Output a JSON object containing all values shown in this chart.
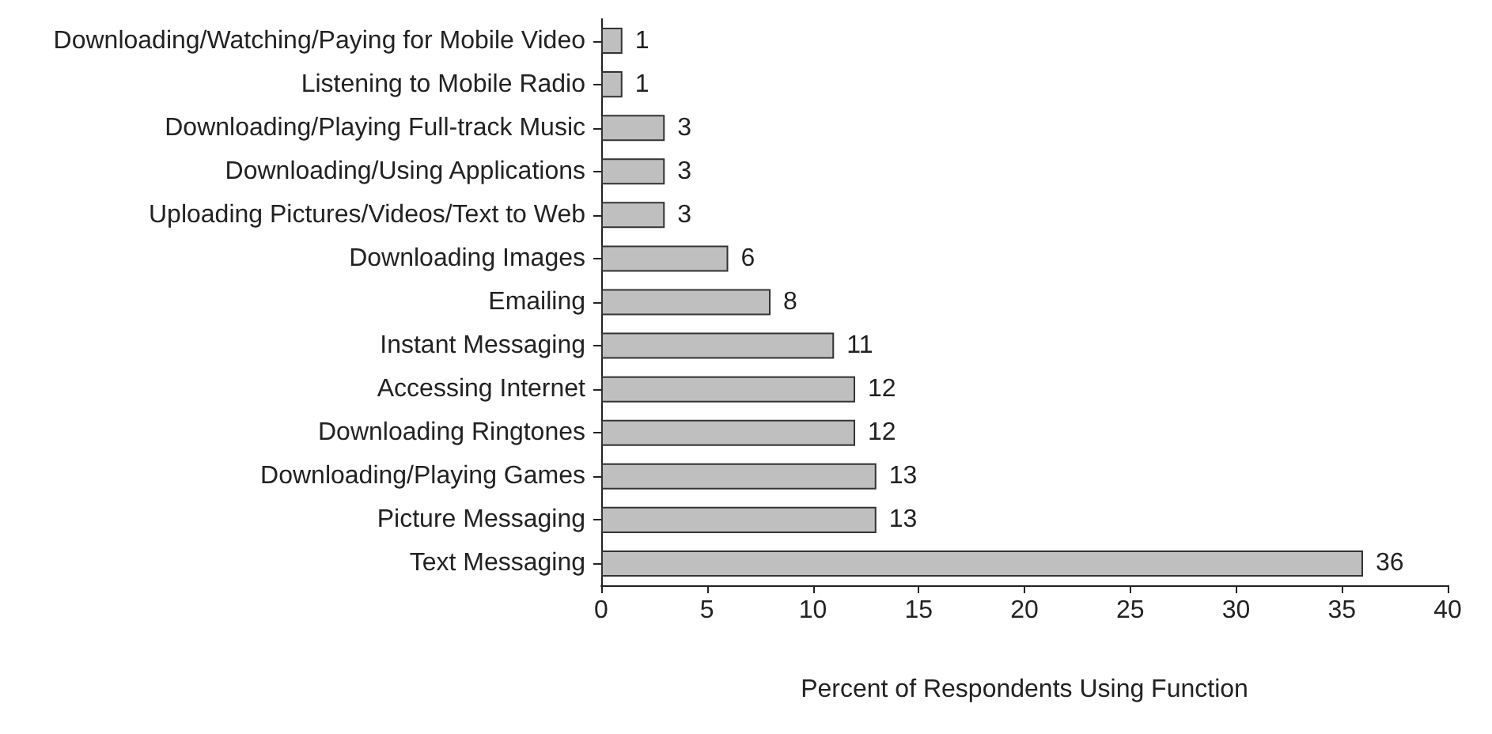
{
  "chart_data": {
    "type": "bar",
    "orientation": "horizontal",
    "xlabel": "Percent of Respondents Using Function",
    "categories": [
      "Downloading/Watching/Paying for Mobile Video",
      "Listening to Mobile Radio",
      "Downloading/Playing Full-track Music",
      "Downloading/Using Applications",
      "Uploading Pictures/Videos/Text to Web",
      "Downloading Images",
      "Emailing",
      "Instant Messaging",
      "Accessing Internet",
      "Downloading Ringtones",
      "Downloading/Playing Games",
      "Picture Messaging",
      "Text Messaging"
    ],
    "values": [
      1,
      1,
      3,
      3,
      3,
      6,
      8,
      11,
      12,
      12,
      13,
      13,
      36
    ],
    "color": "#bfbfbf",
    "xlim": [
      0,
      40
    ],
    "xticks": [
      0,
      5,
      10,
      15,
      20,
      25,
      30,
      35,
      40
    ],
    "data_labels": true,
    "grid": false
  }
}
